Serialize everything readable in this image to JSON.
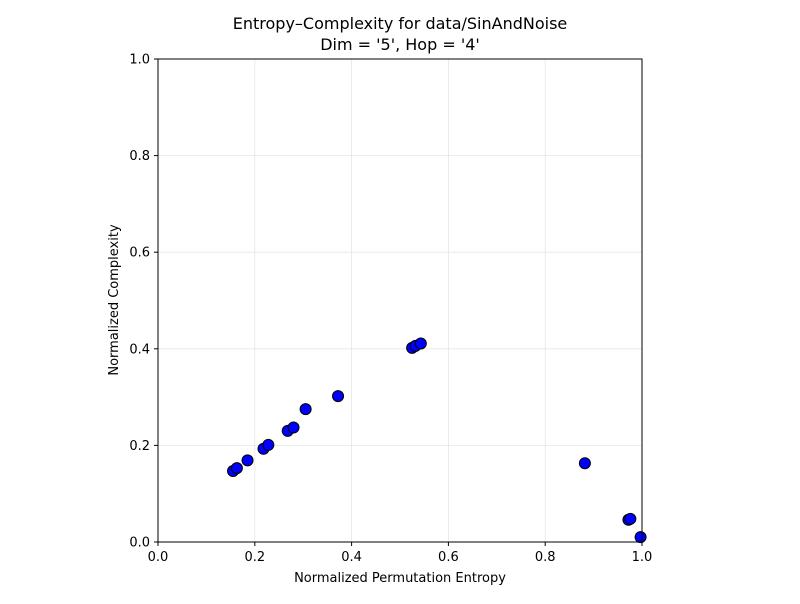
{
  "chart_data": {
    "type": "scatter",
    "title": "Entropy–Complexity for data/SinAndNoise",
    "subtitle": "Dim = '5', Hop = '4'",
    "xlabel": "Normalized Permutation Entropy",
    "ylabel": "Normalized Complexity",
    "xlim": [
      0.0,
      1.0
    ],
    "ylim": [
      0.0,
      1.0
    ],
    "x_ticks": [
      "0.0",
      "0.2",
      "0.4",
      "0.6",
      "0.8",
      "1.0"
    ],
    "y_ticks": [
      "0.0",
      "0.2",
      "0.4",
      "0.6",
      "0.8",
      "1.0"
    ],
    "grid": true,
    "marker_color": "#0000ff",
    "marker_edge_color": "#000000",
    "points": [
      {
        "x": 0.155,
        "y": 0.147
      },
      {
        "x": 0.163,
        "y": 0.153
      },
      {
        "x": 0.185,
        "y": 0.169
      },
      {
        "x": 0.218,
        "y": 0.193
      },
      {
        "x": 0.228,
        "y": 0.201
      },
      {
        "x": 0.268,
        "y": 0.23
      },
      {
        "x": 0.28,
        "y": 0.237
      },
      {
        "x": 0.305,
        "y": 0.275
      },
      {
        "x": 0.372,
        "y": 0.302
      },
      {
        "x": 0.525,
        "y": 0.402
      },
      {
        "x": 0.532,
        "y": 0.406
      },
      {
        "x": 0.543,
        "y": 0.411
      },
      {
        "x": 0.882,
        "y": 0.163
      },
      {
        "x": 0.972,
        "y": 0.046
      },
      {
        "x": 0.976,
        "y": 0.048
      },
      {
        "x": 0.997,
        "y": 0.01
      }
    ]
  }
}
